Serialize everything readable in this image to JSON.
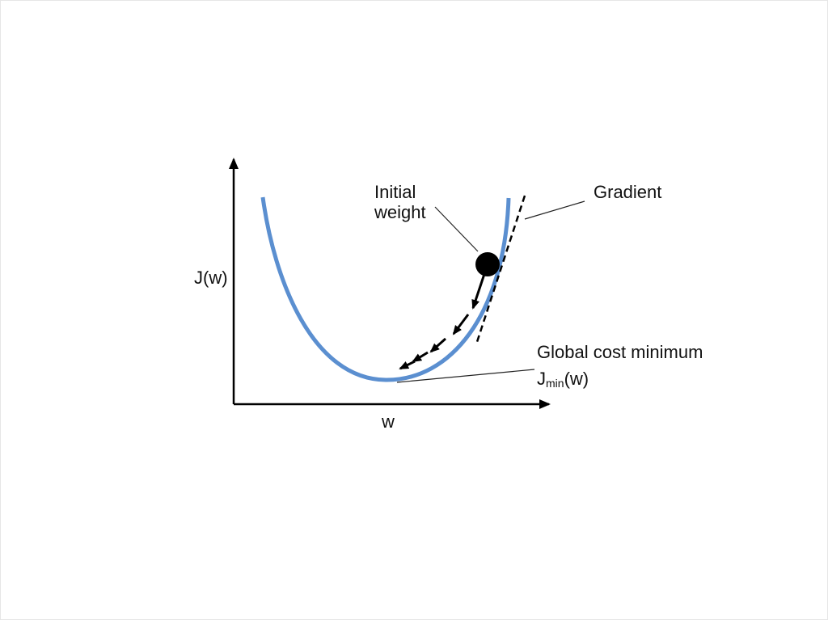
{
  "labels": {
    "initial_weight_line1": "Initial",
    "initial_weight_line2": "weight",
    "gradient": "Gradient",
    "y_axis": "J(w)",
    "x_axis": "w",
    "global_minimum": "Global cost minimum",
    "jmin_main": "J",
    "jmin_sub": "min",
    "jmin_tail": "(w)"
  },
  "colors": {
    "curve": "#5b8fd0",
    "ink": "#000000",
    "leader": "#222222"
  }
}
